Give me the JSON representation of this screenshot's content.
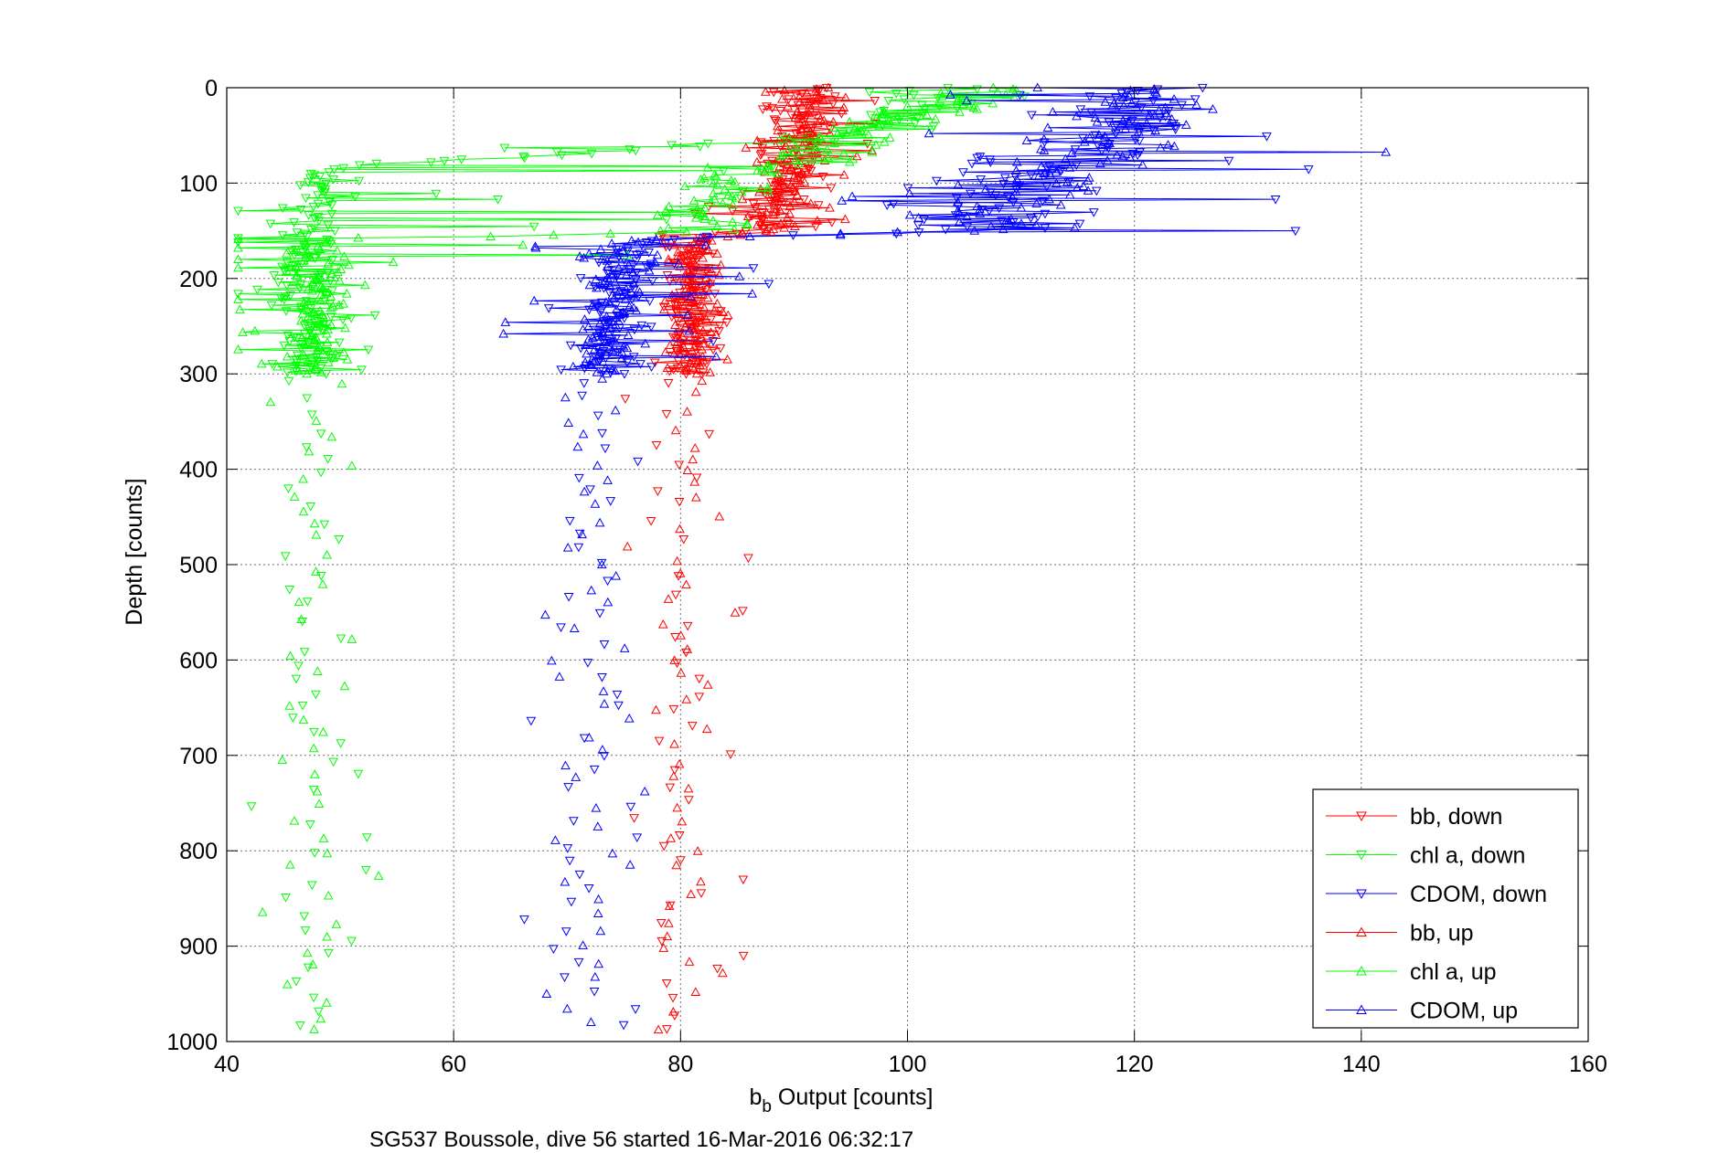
{
  "chart_data": {
    "type": "scatter",
    "title": "",
    "caption": "SG537 Boussole, dive 56 started 16-Mar-2016 06:32:17",
    "xlabel_main": "b",
    "xlabel_sub": "b",
    "xlabel_rest": " Output [counts]",
    "ylabel": "Depth [counts]",
    "xlim": [
      40,
      160
    ],
    "ylim": [
      0,
      1000
    ],
    "y_reversed": true,
    "grid": true,
    "xticks": [
      40,
      60,
      80,
      100,
      120,
      140,
      160
    ],
    "yticks": [
      0,
      100,
      200,
      300,
      400,
      500,
      600,
      700,
      800,
      900,
      1000
    ],
    "legend_position": "bottom-right",
    "series": [
      {
        "name": "bb, down",
        "color": "#ff0000",
        "marker": "triangle-down",
        "profile": [
          [
            0,
            91,
            3,
            9
          ],
          [
            60,
            90,
            2,
            6
          ],
          [
            100,
            89,
            2,
            5
          ],
          [
            150,
            86,
            5,
            8
          ],
          [
            160,
            81,
            1.5,
            4
          ],
          [
            300,
            81,
            1.5,
            4
          ],
          [
            310,
            80,
            1.5,
            3
          ],
          [
            1000,
            80,
            1.5,
            3
          ]
        ]
      },
      {
        "name": "chl a, down",
        "color": "#00ff00",
        "marker": "triangle-down",
        "profile": [
          [
            0,
            103,
            3,
            8
          ],
          [
            50,
            95,
            4,
            10
          ],
          [
            85,
            49,
            2,
            40
          ],
          [
            160,
            47,
            2,
            30
          ],
          [
            180,
            47,
            2,
            8
          ],
          [
            300,
            47,
            2,
            6
          ],
          [
            310,
            47,
            1.5,
            3
          ],
          [
            1000,
            47,
            1.5,
            3
          ]
        ]
      },
      {
        "name": "CDOM, down",
        "color": "#0000ff",
        "marker": "triangle-down",
        "profile": [
          [
            0,
            120,
            4,
            20
          ],
          [
            60,
            118,
            6,
            30
          ],
          [
            100,
            108,
            5,
            25
          ],
          [
            150,
            108,
            6,
            25
          ],
          [
            160,
            76,
            2,
            15
          ],
          [
            300,
            73,
            2,
            10
          ],
          [
            310,
            72,
            2,
            3
          ],
          [
            1000,
            71,
            2,
            3
          ]
        ]
      },
      {
        "name": "bb, up",
        "color": "#ff0000",
        "marker": "triangle-up",
        "profile": [
          [
            0,
            92,
            2,
            5
          ],
          [
            60,
            91,
            2,
            6
          ],
          [
            100,
            89,
            2,
            6
          ],
          [
            150,
            88,
            3,
            6
          ],
          [
            160,
            81,
            1.5,
            4
          ],
          [
            300,
            81,
            1.5,
            4
          ],
          [
            310,
            81,
            1.5,
            3
          ],
          [
            1000,
            80,
            1.5,
            3
          ]
        ]
      },
      {
        "name": "chl a, up",
        "color": "#00ff00",
        "marker": "triangle-up",
        "profile": [
          [
            0,
            107,
            3,
            6
          ],
          [
            60,
            93,
            4,
            8
          ],
          [
            100,
            83,
            3,
            6
          ],
          [
            150,
            82,
            3,
            6
          ],
          [
            160,
            48,
            2,
            30
          ],
          [
            300,
            48,
            2,
            6
          ],
          [
            310,
            48,
            1.5,
            3
          ],
          [
            1000,
            48,
            1.5,
            3
          ]
        ]
      },
      {
        "name": "CDOM, up",
        "color": "#0000ff",
        "marker": "triangle-up",
        "profile": [
          [
            0,
            122,
            4,
            20
          ],
          [
            60,
            118,
            6,
            25
          ],
          [
            100,
            110,
            5,
            20
          ],
          [
            150,
            106,
            5,
            25
          ],
          [
            160,
            75,
            2,
            12
          ],
          [
            300,
            73,
            2,
            10
          ],
          [
            310,
            72,
            2,
            3
          ],
          [
            1000,
            72,
            2,
            3
          ]
        ]
      }
    ]
  }
}
